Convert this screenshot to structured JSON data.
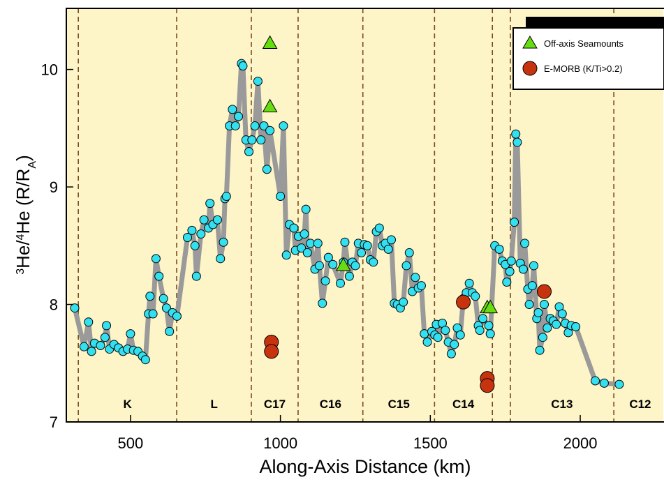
{
  "chart_data": {
    "type": "line",
    "xlabel": "Along-Axis Distance (km)",
    "ylabel_parts": [
      "3",
      "He/",
      "4",
      "He (R/R",
      "A",
      ")"
    ],
    "xlim": [
      286,
      2277
    ],
    "ylim": [
      7,
      10.52
    ],
    "xticks": [
      500,
      1000,
      1500,
      2000
    ],
    "yticks": [
      7,
      8,
      9,
      10
    ],
    "background": "#fdf4c8",
    "boundaries": [
      326,
      654,
      903,
      1059,
      1275,
      1514,
      1707,
      1767,
      2112
    ],
    "sections": [
      {
        "label": "K",
        "x": 490
      },
      {
        "label": "L",
        "x": 779
      },
      {
        "label": "C17",
        "x": 981
      },
      {
        "label": "C16",
        "x": 1167
      },
      {
        "label": "C15",
        "x": 1395
      },
      {
        "label": "C14",
        "x": 1610
      },
      {
        "label": "C13",
        "x": 1939
      },
      {
        "label": "C12",
        "x": 2200
      }
    ],
    "legend": "upper right",
    "series": [
      {
        "color": "#33e0f0",
        "line_color": "#9a9a9a",
        "marker": "circle",
        "x": [
          314,
          345,
          360,
          370,
          380,
          400,
          415,
          420,
          430,
          445,
          460,
          475,
          490,
          500,
          510,
          525,
          540,
          550,
          560,
          565,
          575,
          585,
          595,
          610,
          620,
          630,
          640,
          655,
          690,
          705,
          715,
          720,
          735,
          745,
          760,
          765,
          775,
          790,
          800,
          810,
          815,
          820,
          830,
          840,
          850,
          860,
          870,
          875,
          885,
          895,
          905,
          915,
          925,
          935,
          945,
          955,
          965,
          1000,
          1010,
          1020,
          1030,
          1045,
          1050,
          1060,
          1070,
          1080,
          1085,
          1090,
          1100,
          1115,
          1125,
          1130,
          1140,
          1150,
          1160,
          1175,
          1200,
          1210,
          1215,
          1230,
          1240,
          1250,
          1260,
          1270,
          1280,
          1290,
          1300,
          1310,
          1320,
          1330,
          1340,
          1350,
          1360,
          1370,
          1380,
          1390,
          1400,
          1410,
          1420,
          1430,
          1440,
          1450,
          1460,
          1470,
          1480,
          1490,
          1505,
          1515,
          1520,
          1525,
          1540,
          1550,
          1560,
          1570,
          1580,
          1590,
          1600,
          1610,
          1620,
          1630,
          1640,
          1650,
          1660,
          1665,
          1675,
          1695,
          1700,
          1715,
          1730,
          1740,
          1750,
          1755,
          1765,
          1770,
          1780,
          1785,
          1790,
          1800,
          1810,
          1815,
          1825,
          1830,
          1840,
          1845,
          1855,
          1860,
          1865,
          1875,
          1880,
          1890,
          1900,
          1910,
          1920,
          1930,
          1940,
          1950,
          1960,
          1970,
          1985,
          2050,
          2080,
          2130
        ],
        "values": [
          7.97,
          7.64,
          7.85,
          7.6,
          7.67,
          7.65,
          7.72,
          7.82,
          7.62,
          7.66,
          7.63,
          7.6,
          7.62,
          7.75,
          7.61,
          7.6,
          7.56,
          7.53,
          7.92,
          8.07,
          7.92,
          8.39,
          8.24,
          8.05,
          7.97,
          7.77,
          7.93,
          7.9,
          8.57,
          8.63,
          8.5,
          8.24,
          8.6,
          8.72,
          8.65,
          8.86,
          8.68,
          8.72,
          8.39,
          8.53,
          8.9,
          8.92,
          9.52,
          9.66,
          9.52,
          9.6,
          10.05,
          10.03,
          9.4,
          9.3,
          9.4,
          9.52,
          9.9,
          9.4,
          9.52,
          9.15,
          9.48,
          8.92,
          9.52,
          8.42,
          8.68,
          8.65,
          8.46,
          8.58,
          8.48,
          8.6,
          8.81,
          8.44,
          8.52,
          8.3,
          8.52,
          8.33,
          8.01,
          8.2,
          8.4,
          8.34,
          8.18,
          8.36,
          8.53,
          8.24,
          8.36,
          8.33,
          8.52,
          8.44,
          8.51,
          8.5,
          8.38,
          8.36,
          8.62,
          8.65,
          8.5,
          8.52,
          8.47,
          8.55,
          8.01,
          8.0,
          7.97,
          8.02,
          8.33,
          8.44,
          8.11,
          8.23,
          8.14,
          8.16,
          7.75,
          7.68,
          7.77,
          7.74,
          7.83,
          7.72,
          7.84,
          7.78,
          7.68,
          7.58,
          7.66,
          7.8,
          7.74,
          8.05,
          8.1,
          8.18,
          8.1,
          8.07,
          7.82,
          7.78,
          7.88,
          7.82,
          7.75,
          8.5,
          8.47,
          8.37,
          8.34,
          8.19,
          8.28,
          8.37,
          8.7,
          9.45,
          9.38,
          8.35,
          8.3,
          8.52,
          8.13,
          8.0,
          8.16,
          8.33,
          7.88,
          7.93,
          7.61,
          7.72,
          8.0,
          7.8,
          7.88,
          7.86,
          7.83,
          7.98,
          7.92,
          7.84,
          7.76,
          7.82,
          7.81,
          7.35,
          7.33,
          7.32
        ]
      },
      {
        "name": "Off-axis Seamounts",
        "color": "#66dd11",
        "marker": "triangle",
        "x": [
          965,
          965,
          1210,
          1690,
          1700
        ],
        "values": [
          10.22,
          9.68,
          8.33,
          7.97,
          7.97
        ]
      },
      {
        "name": "E-MORB (K/Ti>0.2)",
        "color": "#c8330f",
        "marker": "bigcircle",
        "x": [
          970,
          970,
          1610,
          1690,
          1690,
          1880
        ],
        "values": [
          7.68,
          7.6,
          8.02,
          7.37,
          7.31,
          8.11
        ]
      }
    ]
  }
}
